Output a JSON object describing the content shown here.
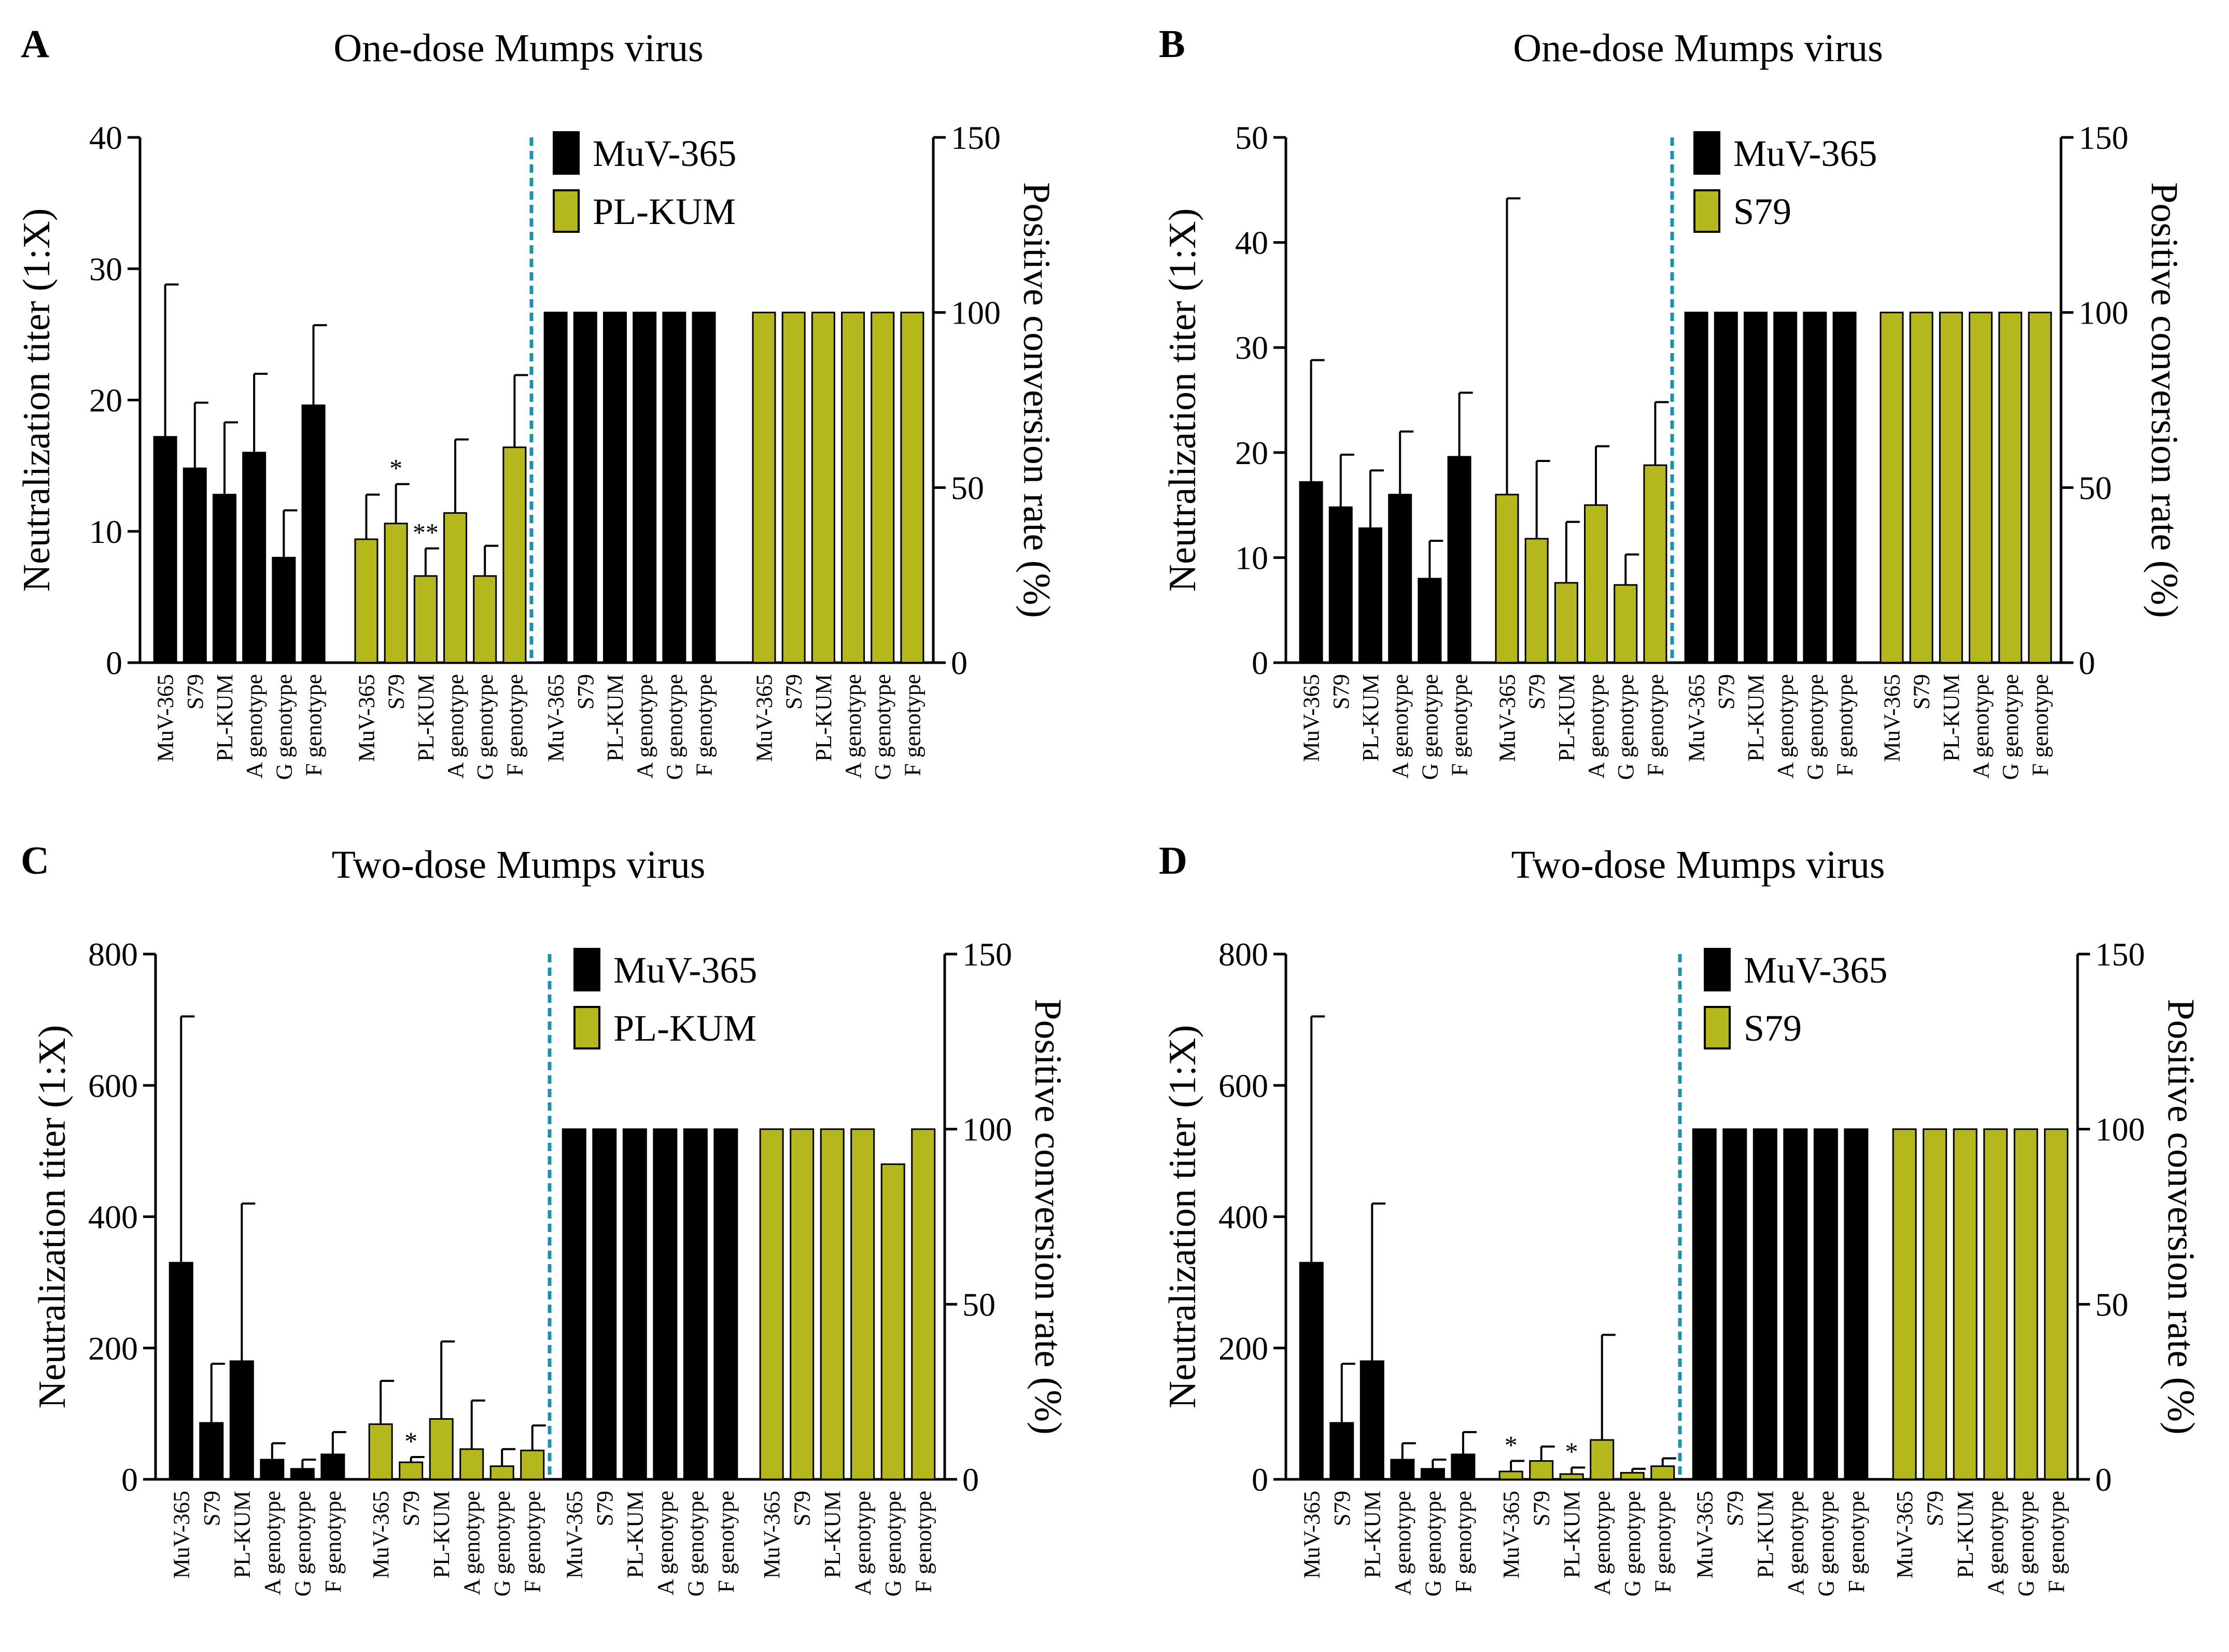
{
  "colors": {
    "black_bar": "#000000",
    "olive_bar": "#b5b81d",
    "divider": "#1a93b0"
  },
  "categories": [
    "MuV-365",
    "S79",
    "PL-KUM",
    "A genotype",
    "G genotype",
    "F genotype"
  ],
  "chart_data": [
    {
      "type": "bar",
      "panel_label": "A",
      "title": "One-dose Mumps virus",
      "ylabel": "Neutralization titer (1:X)",
      "y2label": "Positive conversion rate (%)",
      "ylim": [
        0,
        40
      ],
      "yticks": [
        "0",
        "10",
        "20",
        "30",
        "40"
      ],
      "y2lim": [
        0,
        150
      ],
      "y2ticks": [
        "0",
        "50",
        "100",
        "150"
      ],
      "legend": [
        "MuV-365",
        "PL-KUM"
      ],
      "titer_series": [
        {
          "name": "MuV-365",
          "values": [
            17.2,
            14.8,
            12.8,
            16.0,
            8.0,
            19.6
          ],
          "errors": [
            11.6,
            5.0,
            5.5,
            6.0,
            3.6,
            6.1
          ],
          "stars": [
            "",
            "",
            "",
            "",
            "",
            ""
          ]
        },
        {
          "name": "PL-KUM",
          "values": [
            9.4,
            10.6,
            6.6,
            11.4,
            6.6,
            16.4
          ],
          "errors": [
            3.4,
            3.0,
            2.1,
            5.6,
            2.3,
            5.5
          ],
          "stars": [
            "",
            "*",
            "**",
            "",
            "",
            ""
          ]
        }
      ],
      "rate_series": [
        {
          "name": "MuV-365",
          "values": [
            100,
            100,
            100,
            100,
            100,
            100
          ]
        },
        {
          "name": "PL-KUM",
          "values": [
            100,
            100,
            100,
            100,
            100,
            100
          ]
        }
      ]
    },
    {
      "type": "bar",
      "panel_label": "B",
      "title": "One-dose Mumps virus",
      "ylabel": "Neutralization titer (1:X)",
      "y2label": "Positive conversion rate (%)",
      "ylim": [
        0,
        50
      ],
      "yticks": [
        "0",
        "10",
        "20",
        "30",
        "40",
        "50"
      ],
      "y2lim": [
        0,
        150
      ],
      "y2ticks": [
        "0",
        "50",
        "100",
        "150"
      ],
      "legend": [
        "MuV-365",
        "S79"
      ],
      "titer_series": [
        {
          "name": "MuV-365",
          "values": [
            17.2,
            14.8,
            12.8,
            16.0,
            8.0,
            19.6
          ],
          "errors": [
            11.6,
            5.0,
            5.5,
            6.0,
            3.6,
            6.1
          ],
          "stars": [
            "",
            "",
            "",
            "",
            "",
            ""
          ]
        },
        {
          "name": "S79",
          "values": [
            16.0,
            11.8,
            7.6,
            15.0,
            7.4,
            18.8
          ],
          "errors": [
            28.2,
            7.4,
            5.8,
            5.6,
            2.9,
            6.0
          ],
          "stars": [
            "",
            "",
            "",
            "",
            "",
            ""
          ]
        }
      ],
      "rate_series": [
        {
          "name": "MuV-365",
          "values": [
            100,
            100,
            100,
            100,
            100,
            100
          ]
        },
        {
          "name": "S79",
          "values": [
            100,
            100,
            100,
            100,
            100,
            100
          ]
        }
      ]
    },
    {
      "type": "bar",
      "panel_label": "C",
      "title": "Two-dose Mumps virus",
      "ylabel": "Neutralization titer (1:X)",
      "y2label": "Positive conversion rate (%)",
      "ylim": [
        0,
        800
      ],
      "yticks": [
        "0",
        "200",
        "400",
        "600",
        "800"
      ],
      "y2lim": [
        0,
        150
      ],
      "y2ticks": [
        "0",
        "50",
        "100",
        "150"
      ],
      "legend": [
        "MuV-365",
        "PL-KUM"
      ],
      "titer_series": [
        {
          "name": "MuV-365",
          "values": [
            330,
            86,
            180,
            30,
            16,
            38
          ],
          "errors": [
            375,
            90,
            240,
            25,
            14,
            34
          ],
          "stars": [
            "",
            "",
            "",
            "",
            "",
            ""
          ]
        },
        {
          "name": "PL-KUM",
          "values": [
            84,
            26,
            92,
            46,
            20,
            44
          ],
          "errors": [
            66,
            8,
            118,
            74,
            26,
            38
          ],
          "stars": [
            "",
            "*",
            "",
            "",
            "",
            ""
          ]
        }
      ],
      "rate_series": [
        {
          "name": "MuV-365",
          "values": [
            100,
            100,
            100,
            100,
            100,
            100
          ]
        },
        {
          "name": "PL-KUM",
          "values": [
            100,
            100,
            100,
            100,
            90,
            100
          ]
        }
      ]
    },
    {
      "type": "bar",
      "panel_label": "D",
      "title": "Two-dose Mumps virus",
      "ylabel": "Neutralization titer (1:X)",
      "y2label": "Positive conversion rate (%)",
      "ylim": [
        0,
        800
      ],
      "yticks": [
        "0",
        "200",
        "400",
        "600",
        "800"
      ],
      "y2lim": [
        0,
        150
      ],
      "y2ticks": [
        "0",
        "50",
        "100",
        "150"
      ],
      "legend": [
        "MuV-365",
        "S79"
      ],
      "titer_series": [
        {
          "name": "MuV-365",
          "values": [
            330,
            86,
            180,
            30,
            16,
            38
          ],
          "errors": [
            375,
            90,
            240,
            25,
            14,
            34
          ],
          "stars": [
            "",
            "",
            "",
            "",
            "",
            ""
          ]
        },
        {
          "name": "S79",
          "values": [
            12,
            28,
            8,
            60,
            10,
            20
          ],
          "errors": [
            16,
            22,
            10,
            160,
            6,
            12
          ],
          "stars": [
            "*",
            "",
            "*",
            "",
            "",
            ""
          ]
        }
      ],
      "rate_series": [
        {
          "name": "MuV-365",
          "values": [
            100,
            100,
            100,
            100,
            100,
            100
          ]
        },
        {
          "name": "S79",
          "values": [
            100,
            100,
            100,
            100,
            100,
            100
          ]
        }
      ]
    }
  ]
}
